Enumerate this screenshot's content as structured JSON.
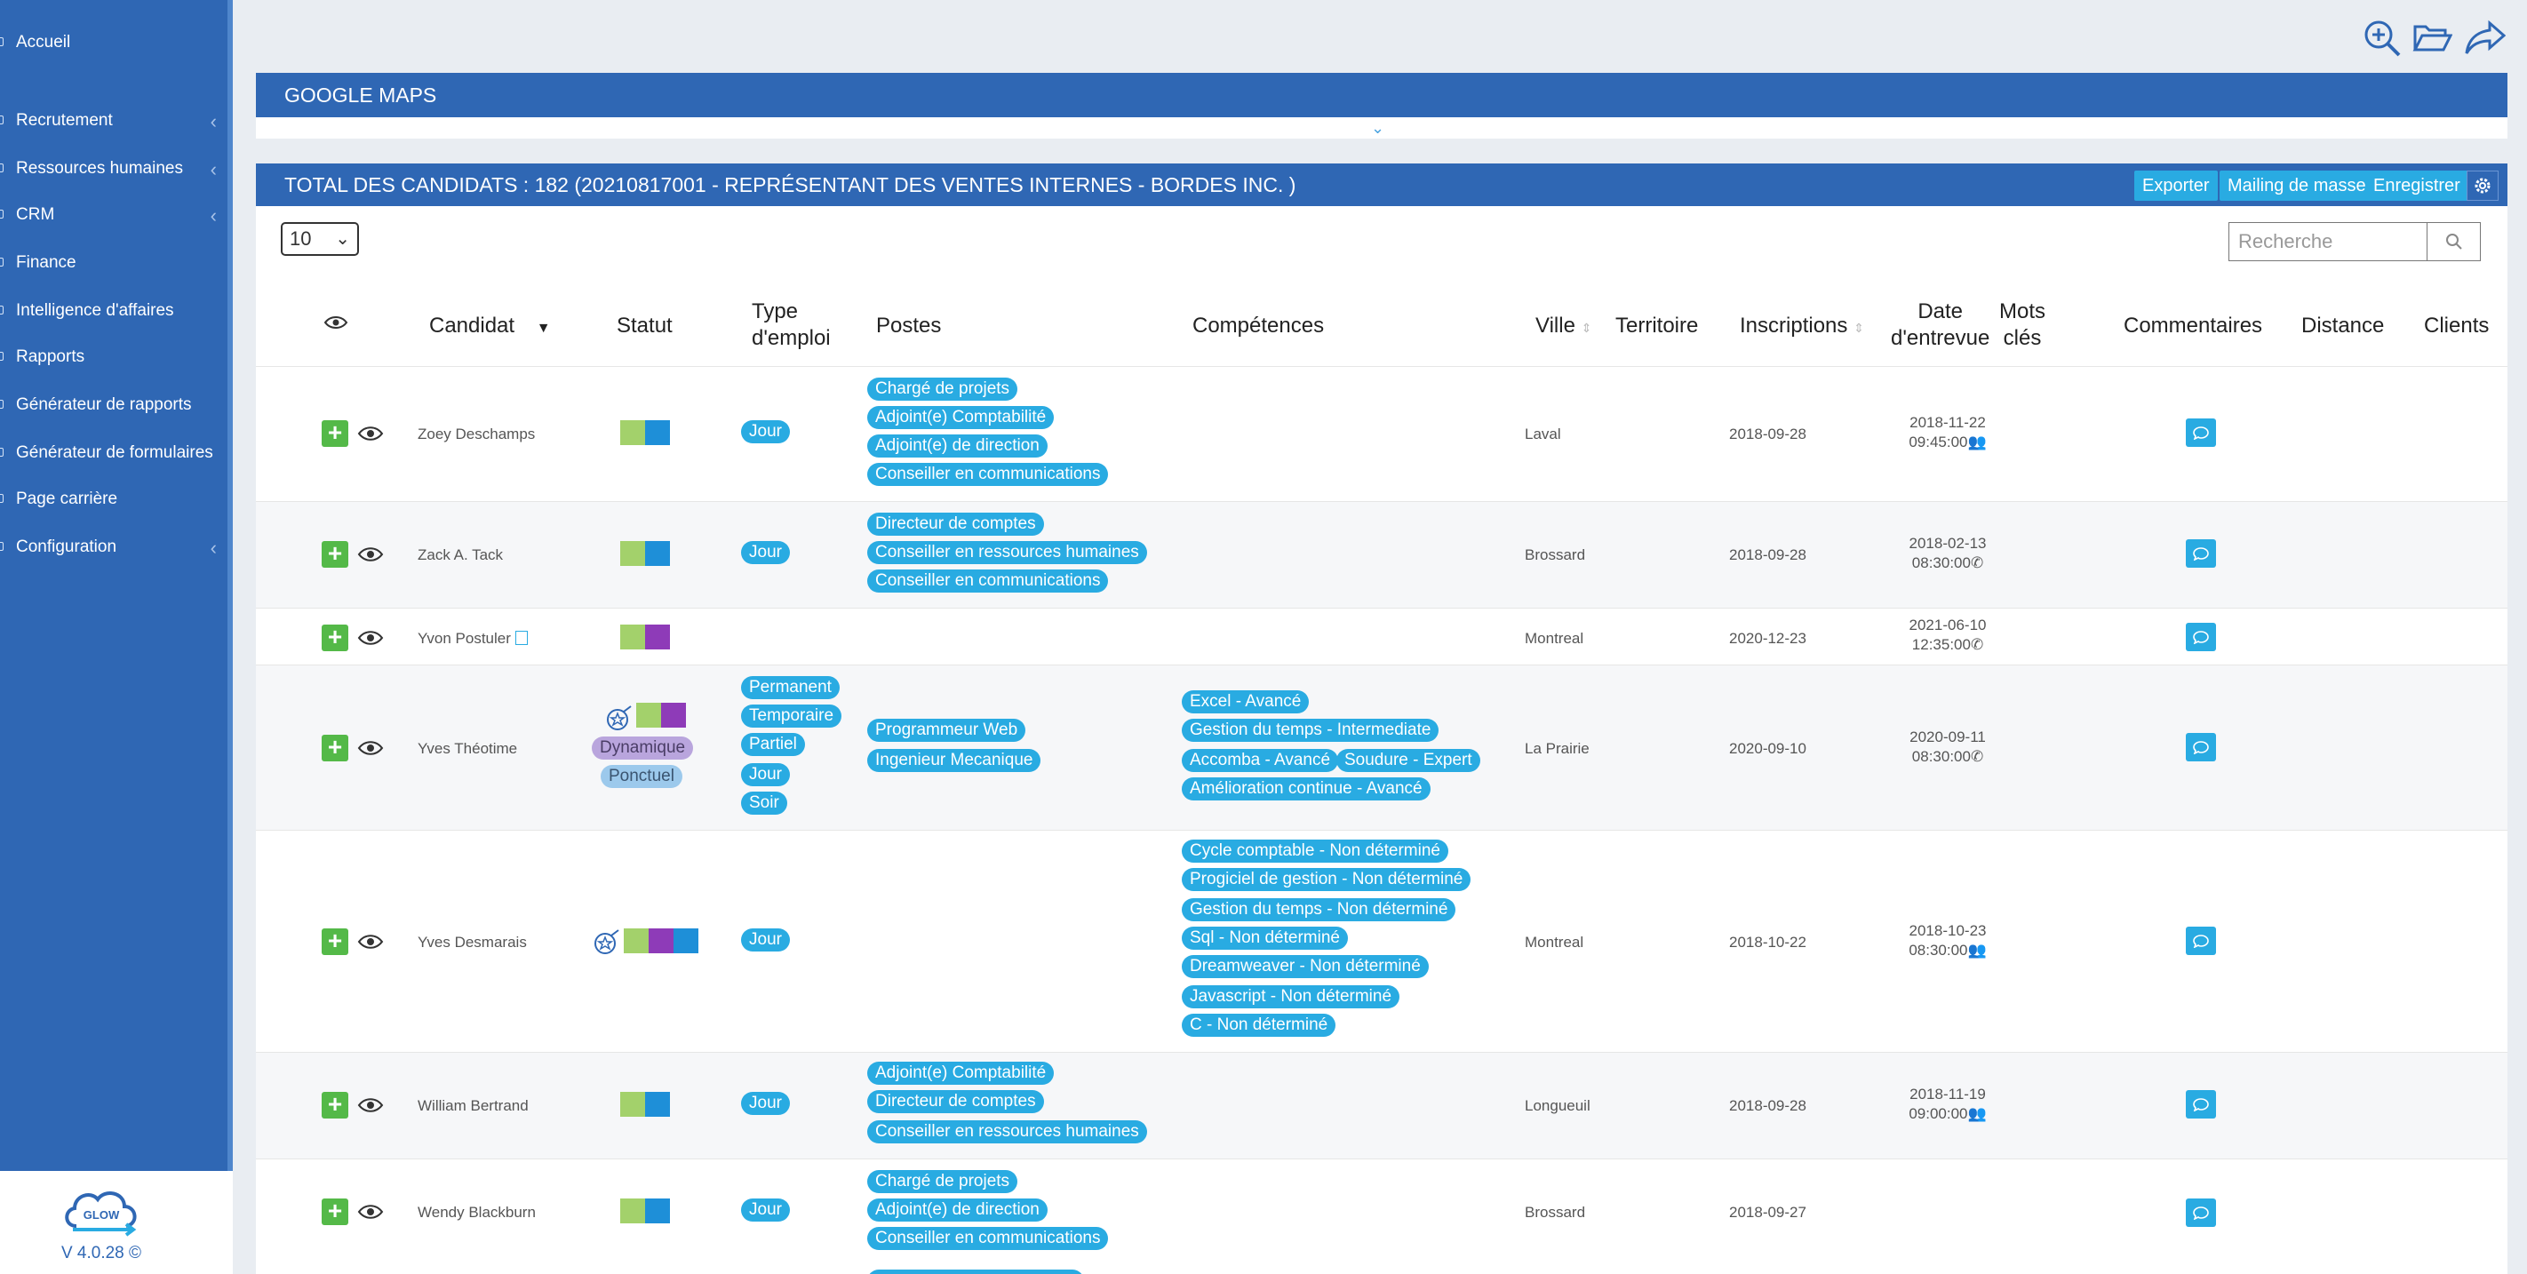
{
  "sidebar": {
    "items": [
      {
        "label": "Accueil"
      },
      {
        "label": "Recrutement"
      },
      {
        "label": "Ressources humaines"
      },
      {
        "label": "CRM"
      },
      {
        "label": "Finance"
      },
      {
        "label": "Intelligence d'affaires"
      },
      {
        "label": "Rapports"
      },
      {
        "label": "Générateur de rapports"
      },
      {
        "label": "Générateur de formulaires"
      },
      {
        "label": "Page carrière"
      },
      {
        "label": "Configuration"
      }
    ],
    "logo_text": "GLOW",
    "version": "V 4.0.28 ©"
  },
  "maps_panel": {
    "title": "GOOGLE MAPS"
  },
  "candidates_panel": {
    "title": "TOTAL DES CANDIDATS : 182 (20210817001 - REPRÉSENTANT DES VENTES INTERNES - BORDES INC. )",
    "buttons": {
      "export": "Exporter",
      "mailing": "Mailing de masse",
      "save": "Enregistrer"
    },
    "page_size": "10",
    "search_placeholder": "Recherche"
  },
  "columns": {
    "candidat": "Candidat",
    "statut": "Statut",
    "type_emploi_1": "Type",
    "type_emploi_2": "d'emploi",
    "postes": "Postes",
    "competences": "Compétences",
    "ville": "Ville",
    "territoire": "Territoire",
    "inscriptions": "Inscriptions",
    "date_entrevue_1": "Date",
    "date_entrevue_2": "d'entrevue",
    "mots_cles_1": "Mots",
    "mots_cles_2": "clés",
    "commentaires": "Commentaires",
    "distance": "Distance",
    "clients": "Clients"
  },
  "rows": [
    {
      "name": "Zoey Deschamps",
      "type": [
        "Jour"
      ],
      "postes": [
        "Chargé de projets",
        "Adjoint(e) Comptabilité",
        "Adjoint(e) de direction",
        "Conseiller en communications"
      ],
      "ville": "Laval",
      "inscription": "2018-09-28",
      "entrevue_date": "2018-11-22",
      "entrevue_time": "09:45:00"
    },
    {
      "name": "Zack A. Tack",
      "type": [
        "Jour"
      ],
      "postes": [
        "Directeur de comptes",
        "Conseiller en ressources humaines",
        "Conseiller en communications"
      ],
      "ville": "Brossard",
      "inscription": "2018-09-28",
      "entrevue_date": "2018-02-13",
      "entrevue_time": "08:30:00"
    },
    {
      "name": "Yvon Postuler",
      "ville": "Montreal",
      "inscription": "2020-12-23",
      "entrevue_date": "2021-06-10",
      "entrevue_time": "12:35:00"
    },
    {
      "name": "Yves Théotime",
      "statut_tags": [
        "Dynamique",
        "Ponctuel"
      ],
      "type": [
        "Permanent",
        "Temporaire",
        "Partiel",
        "Jour",
        "Soir"
      ],
      "postes": [
        "Programmeur Web",
        "Ingenieur Mecanique"
      ],
      "competences": [
        "Excel - Avancé",
        "Gestion du temps - Intermediate",
        "Accomba - Avancé",
        "Soudure - Expert",
        "Amélioration continue - Avancé"
      ],
      "ville": "La Prairie",
      "inscription": "2020-09-10",
      "entrevue_date": "2020-09-11",
      "entrevue_time": "08:30:00"
    },
    {
      "name": "Yves Desmarais",
      "type": [
        "Jour"
      ],
      "competences": [
        "Cycle comptable - Non déterminé",
        "Progiciel de gestion - Non déterminé",
        "Gestion du temps - Non déterminé",
        "Sql - Non déterminé",
        "Dreamweaver - Non déterminé",
        "Javascript - Non déterminé",
        "C - Non déterminé"
      ],
      "ville": "Montreal",
      "inscription": "2018-10-22",
      "entrevue_date": "2018-10-23",
      "entrevue_time": "08:30:00"
    },
    {
      "name": "William Bertrand",
      "type": [
        "Jour"
      ],
      "postes": [
        "Adjoint(e) Comptabilité",
        "Directeur de comptes",
        "Conseiller en ressources humaines"
      ],
      "ville": "Longueuil",
      "inscription": "2018-09-28",
      "entrevue_date": "2018-11-19",
      "entrevue_time": "09:00:00"
    },
    {
      "name": "Wendy Blackburn",
      "type": [
        "Jour"
      ],
      "postes": [
        "Chargé de projets",
        "Adjoint(e) de direction",
        "Conseiller en communications"
      ],
      "ville": "Brossard",
      "inscription": "2018-09-27"
    }
  ],
  "colors": {
    "sidebar": "#2f67b4",
    "accent": "#29abe2",
    "green": "#a3d16b",
    "blue": "#1e8fd8",
    "purple": "#8e3bb8",
    "plus": "#54b948"
  }
}
